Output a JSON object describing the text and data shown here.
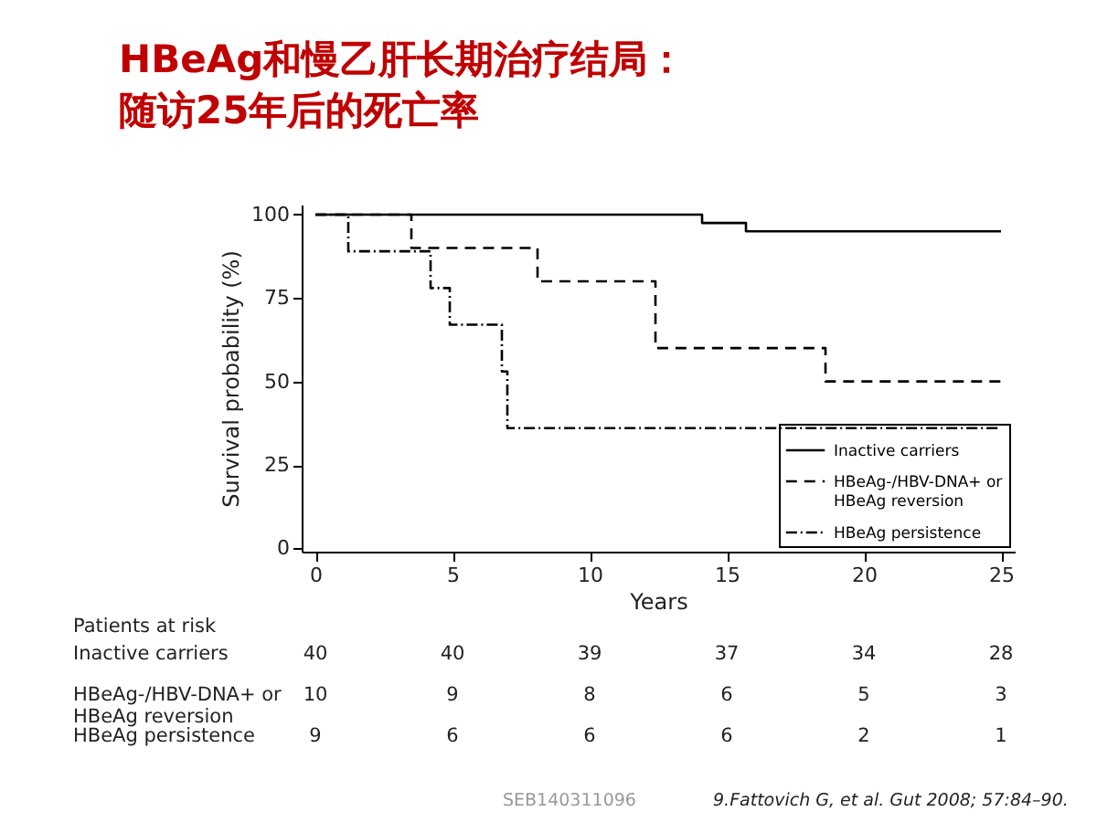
{
  "chart_data": {
    "type": "step",
    "title": [
      "HBeAg和慢乙肝长期治疗结局：",
      "随访25年后的死亡率"
    ],
    "xlabel": "Years",
    "ylabel": "Survival probability (%)",
    "xlim": [
      -0.5,
      25.5
    ],
    "xticks": [
      0,
      5,
      10,
      15,
      20,
      25
    ],
    "ylim": [
      -1,
      103
    ],
    "yticks": [
      0,
      25,
      50,
      75,
      100
    ],
    "grid": false,
    "legend": "bottom right",
    "marker": "none",
    "series": [
      {
        "name": "Inactive carriers",
        "color": "#000000",
        "line_style": "solid",
        "x": [
          0,
          14.1,
          15.7,
          25
        ],
        "values": [
          100,
          97.5,
          95,
          95
        ]
      },
      {
        "name": "HBeAg-/HBV-DNA+ or\nHBeAg reversion",
        "color": "#000000",
        "line_style": "dashed",
        "x": [
          0,
          3.5,
          8.1,
          12.4,
          18.6,
          25
        ],
        "values": [
          100,
          90,
          80,
          60,
          50,
          50
        ]
      },
      {
        "name": "HBeAg persistence",
        "color": "#000000",
        "line_style": "dashdot",
        "x": [
          0,
          1.2,
          4.2,
          4.9,
          6.8,
          7.0,
          25
        ],
        "values": [
          100,
          89,
          78,
          67,
          53,
          36,
          36
        ]
      }
    ],
    "annotations": [
      "Patients at risk",
      "Inactive carriers",
      "40",
      "40",
      "39",
      "37",
      "34",
      "28",
      "HBeAg-/HBV-DNA+ or\nHBeAg reversion",
      "10",
      "9",
      "8",
      "6",
      "5",
      "3",
      "HBeAg persistence",
      "9",
      "6",
      "6",
      "6",
      "2",
      "1",
      "SEB140311096",
      "9.Fattovich G, et al. Gut 2008; 57:84–90."
    ]
  }
}
